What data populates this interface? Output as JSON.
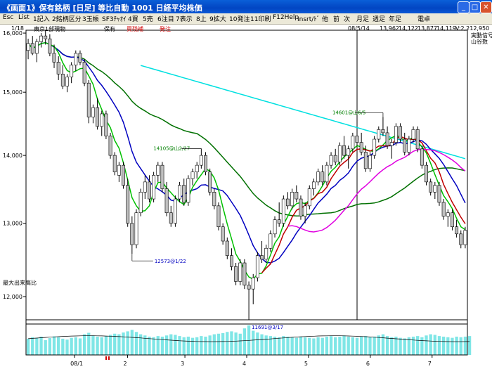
{
  "window": {
    "title": "《画面1》保有銘柄 [日足] 等比自動  1001  日経平均株価",
    "min": "_",
    "max": "□",
    "close": "✕"
  },
  "menu": [
    "Esc",
    "List",
    "1記入",
    "2銘柄区分",
    "3玉帳",
    "SF3ﾁｬｵｲ",
    "4買",
    "5売",
    "6注目",
    "7表示",
    "8上",
    "9拡大",
    "10発注",
    "11印刷",
    "F12Help",
    "Insrt/ﾄﾞ",
    "他",
    "前",
    "次",
    "月足",
    "週足",
    "年足",
    "電卓"
  ],
  "info": {
    "date_count": "1/18",
    "category": "東京1部現物",
    "holding": "保有",
    "unreal_order": "買残補",
    "order": "発注",
    "cursor_date": "08/5/14",
    "ohlc": [
      "13,962",
      "14,122",
      "13,877",
      "14,119"
    ],
    "volume_ratio": "V:2,212,950",
    "source1": "実動信号",
    "source2": "山谷数",
    "vol_label": "最大出来高比"
  },
  "annotations": {
    "low": "12573@1/22",
    "peak1": "14105@山2/27",
    "peak2": "14601@山6/5",
    "low2": "11691@3/17"
  },
  "colors": {
    "candle_up": "#ffffff",
    "candle_down": "#c0c0c0",
    "ma_fast": "#00c000",
    "ma_mid": "#0000c0",
    "ma_slow": "#007000",
    "ma_long": "#00e0e0",
    "ma_red": "#c00000",
    "ma_magenta": "#e000e0",
    "volume": "#7fe6e6"
  },
  "chart_data": {
    "type": "candlestick",
    "ylim": [
      11700,
      16050
    ],
    "yticks": [
      16000,
      15000,
      14000,
      13000,
      12000
    ],
    "ytick_labels": [
      "16,000",
      "15,000",
      "14,000",
      "13,000",
      "12,000"
    ],
    "xtick_labels": [
      "08/1",
      "2",
      "3",
      "4",
      "5",
      "6",
      "7"
    ],
    "candles": [
      [
        15700,
        15900,
        15550,
        15820
      ],
      [
        15820,
        15950,
        15620,
        15650
      ],
      [
        15650,
        15900,
        15500,
        15850
      ],
      [
        15850,
        16000,
        15750,
        15950
      ],
      [
        15950,
        16050,
        15800,
        15900
      ],
      [
        15900,
        15980,
        15600,
        15650
      ],
      [
        15650,
        15800,
        15400,
        15500
      ],
      [
        15500,
        15600,
        15200,
        15300
      ],
      [
        15300,
        15450,
        15050,
        15100
      ],
      [
        15100,
        15300,
        15000,
        15250
      ],
      [
        15250,
        15500,
        15150,
        15450
      ],
      [
        15450,
        15700,
        15350,
        15650
      ],
      [
        15650,
        15700,
        15450,
        15500
      ],
      [
        15500,
        15550,
        15100,
        15150
      ],
      [
        15150,
        15200,
        14500,
        14600
      ],
      [
        14600,
        14800,
        14500,
        14750
      ],
      [
        14750,
        14900,
        14400,
        14450
      ],
      [
        14450,
        14700,
        14300,
        14650
      ],
      [
        14650,
        14700,
        14250,
        14300
      ],
      [
        14300,
        14350,
        13950,
        14000
      ],
      [
        14000,
        14050,
        13700,
        13750
      ],
      [
        13700,
        13900,
        13600,
        13850
      ],
      [
        13850,
        13900,
        13500,
        13550
      ],
      [
        13550,
        13650,
        12950,
        13000
      ],
      [
        13000,
        13100,
        12573,
        12700
      ],
      [
        12700,
        13200,
        12650,
        13150
      ],
      [
        13150,
        13500,
        13100,
        13450
      ],
      [
        13450,
        13700,
        13350,
        13600
      ],
      [
        13600,
        13700,
        13300,
        13350
      ],
      [
        13350,
        13750,
        13300,
        13700
      ],
      [
        13700,
        13900,
        13600,
        13850
      ],
      [
        13850,
        13900,
        13450,
        13500
      ],
      [
        13500,
        13600,
        13100,
        13150
      ],
      [
        13150,
        13250,
        12950,
        13000
      ],
      [
        13000,
        13400,
        12950,
        13350
      ],
      [
        13350,
        13600,
        13300,
        13550
      ],
      [
        13550,
        13650,
        13250,
        13300
      ],
      [
        13300,
        13700,
        13250,
        13650
      ],
      [
        13650,
        13800,
        13550,
        13750
      ],
      [
        13750,
        13900,
        13650,
        13850
      ],
      [
        13850,
        14105,
        13800,
        14000
      ],
      [
        14000,
        14050,
        13700,
        13750
      ],
      [
        13750,
        13800,
        13400,
        13450
      ],
      [
        13450,
        13500,
        13200,
        13250
      ],
      [
        13250,
        13300,
        12900,
        12950
      ],
      [
        12950,
        13000,
        12700,
        12750
      ],
      [
        12750,
        12800,
        12500,
        12550
      ],
      [
        12550,
        12650,
        12350,
        12400
      ],
      [
        12400,
        12450,
        12150,
        12200
      ],
      [
        12200,
        12500,
        12150,
        12450
      ],
      [
        12450,
        12500,
        12100,
        12150
      ],
      [
        12150,
        12200,
        11691,
        12100
      ],
      [
        12100,
        12300,
        11900,
        12250
      ],
      [
        12250,
        12600,
        12200,
        12550
      ],
      [
        12550,
        12750,
        12450,
        12500
      ],
      [
        12500,
        12700,
        12450,
        12650
      ],
      [
        12650,
        12900,
        12600,
        12850
      ],
      [
        12850,
        13100,
        12800,
        13050
      ],
      [
        13050,
        13300,
        12950,
        13000
      ],
      [
        13000,
        13400,
        12950,
        13350
      ],
      [
        13350,
        13450,
        13200,
        13250
      ],
      [
        13250,
        13500,
        13200,
        13450
      ],
      [
        13450,
        13550,
        13300,
        13350
      ],
      [
        13350,
        13400,
        13050,
        13100
      ],
      [
        13100,
        13300,
        13000,
        13250
      ],
      [
        13250,
        13550,
        13200,
        13500
      ],
      [
        13500,
        13650,
        13400,
        13600
      ],
      [
        13600,
        13800,
        13550,
        13750
      ],
      [
        13750,
        13850,
        13550,
        13600
      ],
      [
        13600,
        13900,
        13550,
        13850
      ],
      [
        13850,
        14050,
        13800,
        14000
      ],
      [
        14000,
        14100,
        13850,
        13900
      ],
      [
        13900,
        14200,
        13850,
        14150
      ],
      [
        14150,
        14300,
        13950,
        14000
      ],
      [
        14000,
        14150,
        13800,
        14100
      ],
      [
        14100,
        14350,
        14050,
        14300
      ],
      [
        14300,
        14400,
        14150,
        14200
      ],
      [
        14200,
        14350,
        14000,
        14050
      ],
      [
        14050,
        14150,
        13750,
        13800
      ],
      [
        13800,
        14050,
        13750,
        14000
      ],
      [
        14000,
        14300,
        13950,
        14250
      ],
      [
        14250,
        14450,
        14200,
        14400
      ],
      [
        14400,
        14601,
        14300,
        14350
      ],
      [
        14350,
        14450,
        14100,
        14150
      ],
      [
        14150,
        14250,
        13950,
        14200
      ],
      [
        14200,
        14500,
        14150,
        14450
      ],
      [
        14450,
        14500,
        14200,
        14250
      ],
      [
        14250,
        14350,
        14000,
        14050
      ],
      [
        14050,
        14300,
        14000,
        14250
      ],
      [
        14250,
        14450,
        14200,
        14400
      ],
      [
        14400,
        14450,
        14050,
        14100
      ],
      [
        14100,
        14150,
        13800,
        13850
      ],
      [
        13850,
        13900,
        13550,
        13600
      ],
      [
        13600,
        13650,
        13400,
        13450
      ],
      [
        13450,
        13600,
        13350,
        13550
      ],
      [
        13550,
        13600,
        13250,
        13300
      ],
      [
        13300,
        13350,
        13050,
        13100
      ],
      [
        13100,
        13200,
        12950,
        13150
      ],
      [
        13150,
        13200,
        12900,
        12950
      ],
      [
        12950,
        13050,
        12800,
        12850
      ],
      [
        12850,
        12900,
        12650,
        12700
      ],
      [
        12700,
        12950,
        12650,
        12900
      ]
    ],
    "volume": [
      0.55,
      0.6,
      0.58,
      0.62,
      0.5,
      0.57,
      0.63,
      0.6,
      0.55,
      0.52,
      0.58,
      0.6,
      0.56,
      0.7,
      0.75,
      0.66,
      0.62,
      0.6,
      0.64,
      0.68,
      0.72,
      0.7,
      0.76,
      0.8,
      0.85,
      0.78,
      0.7,
      0.66,
      0.62,
      0.6,
      0.64,
      0.62,
      0.66,
      0.7,
      0.68,
      0.64,
      0.6,
      0.62,
      0.58,
      0.6,
      0.64,
      0.62,
      0.66,
      0.7,
      0.72,
      0.74,
      0.78,
      0.8,
      0.76,
      0.72,
      0.9,
      1.0,
      0.82,
      0.76,
      0.7,
      0.66,
      0.64,
      0.62,
      0.6,
      0.64,
      0.62,
      0.6,
      0.58,
      0.62,
      0.6,
      0.58,
      0.56,
      0.6,
      0.58,
      0.62,
      0.64,
      0.6,
      0.62,
      0.66,
      0.62,
      0.6,
      0.58,
      0.62,
      0.64,
      0.6,
      0.62,
      0.66,
      0.7,
      0.64,
      0.6,
      0.62,
      0.58,
      0.56,
      0.6,
      0.62,
      0.64,
      0.6,
      0.66,
      0.7,
      0.68,
      0.64,
      0.62,
      0.6,
      0.58,
      0.62,
      0.6,
      0.62,
      0.64
    ]
  }
}
